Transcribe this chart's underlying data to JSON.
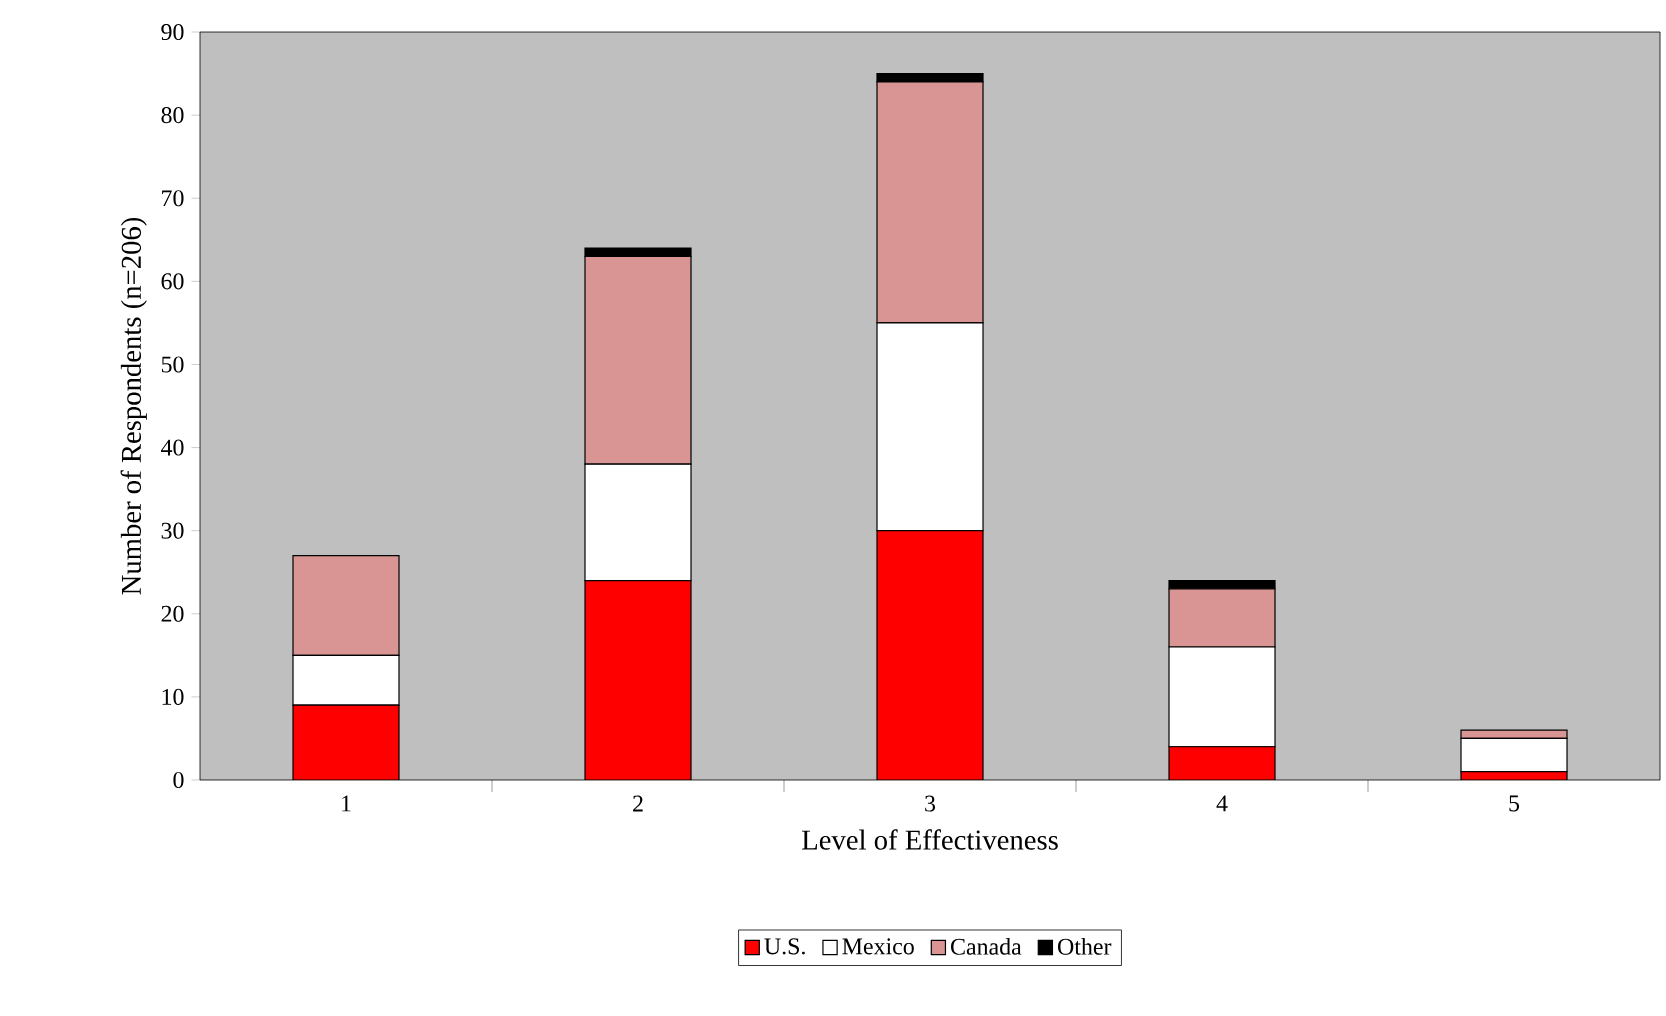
{
  "chart_data": {
    "type": "bar",
    "stacked": true,
    "xlabel": "Level of Effectiveness",
    "ylabel": "Number of Respondents (n=206)",
    "categories": [
      "1",
      "2",
      "3",
      "4",
      "5"
    ],
    "ylim": [
      0,
      90
    ],
    "yticks": [
      0,
      10,
      20,
      30,
      40,
      50,
      60,
      70,
      80,
      90
    ],
    "legend": "bottom",
    "grid": false,
    "series": [
      {
        "name": "U.S.",
        "color": "#ff0000",
        "values": [
          9,
          24,
          30,
          4,
          1
        ]
      },
      {
        "name": "Mexico",
        "color": "#ffffff",
        "values": [
          6,
          14,
          25,
          12,
          4
        ]
      },
      {
        "name": "Canada",
        "color": "#d99594",
        "values": [
          12,
          25,
          29,
          7,
          1
        ]
      },
      {
        "name": "Other",
        "color": "#000000",
        "values": [
          0,
          1,
          1,
          1,
          0
        ]
      }
    ]
  }
}
